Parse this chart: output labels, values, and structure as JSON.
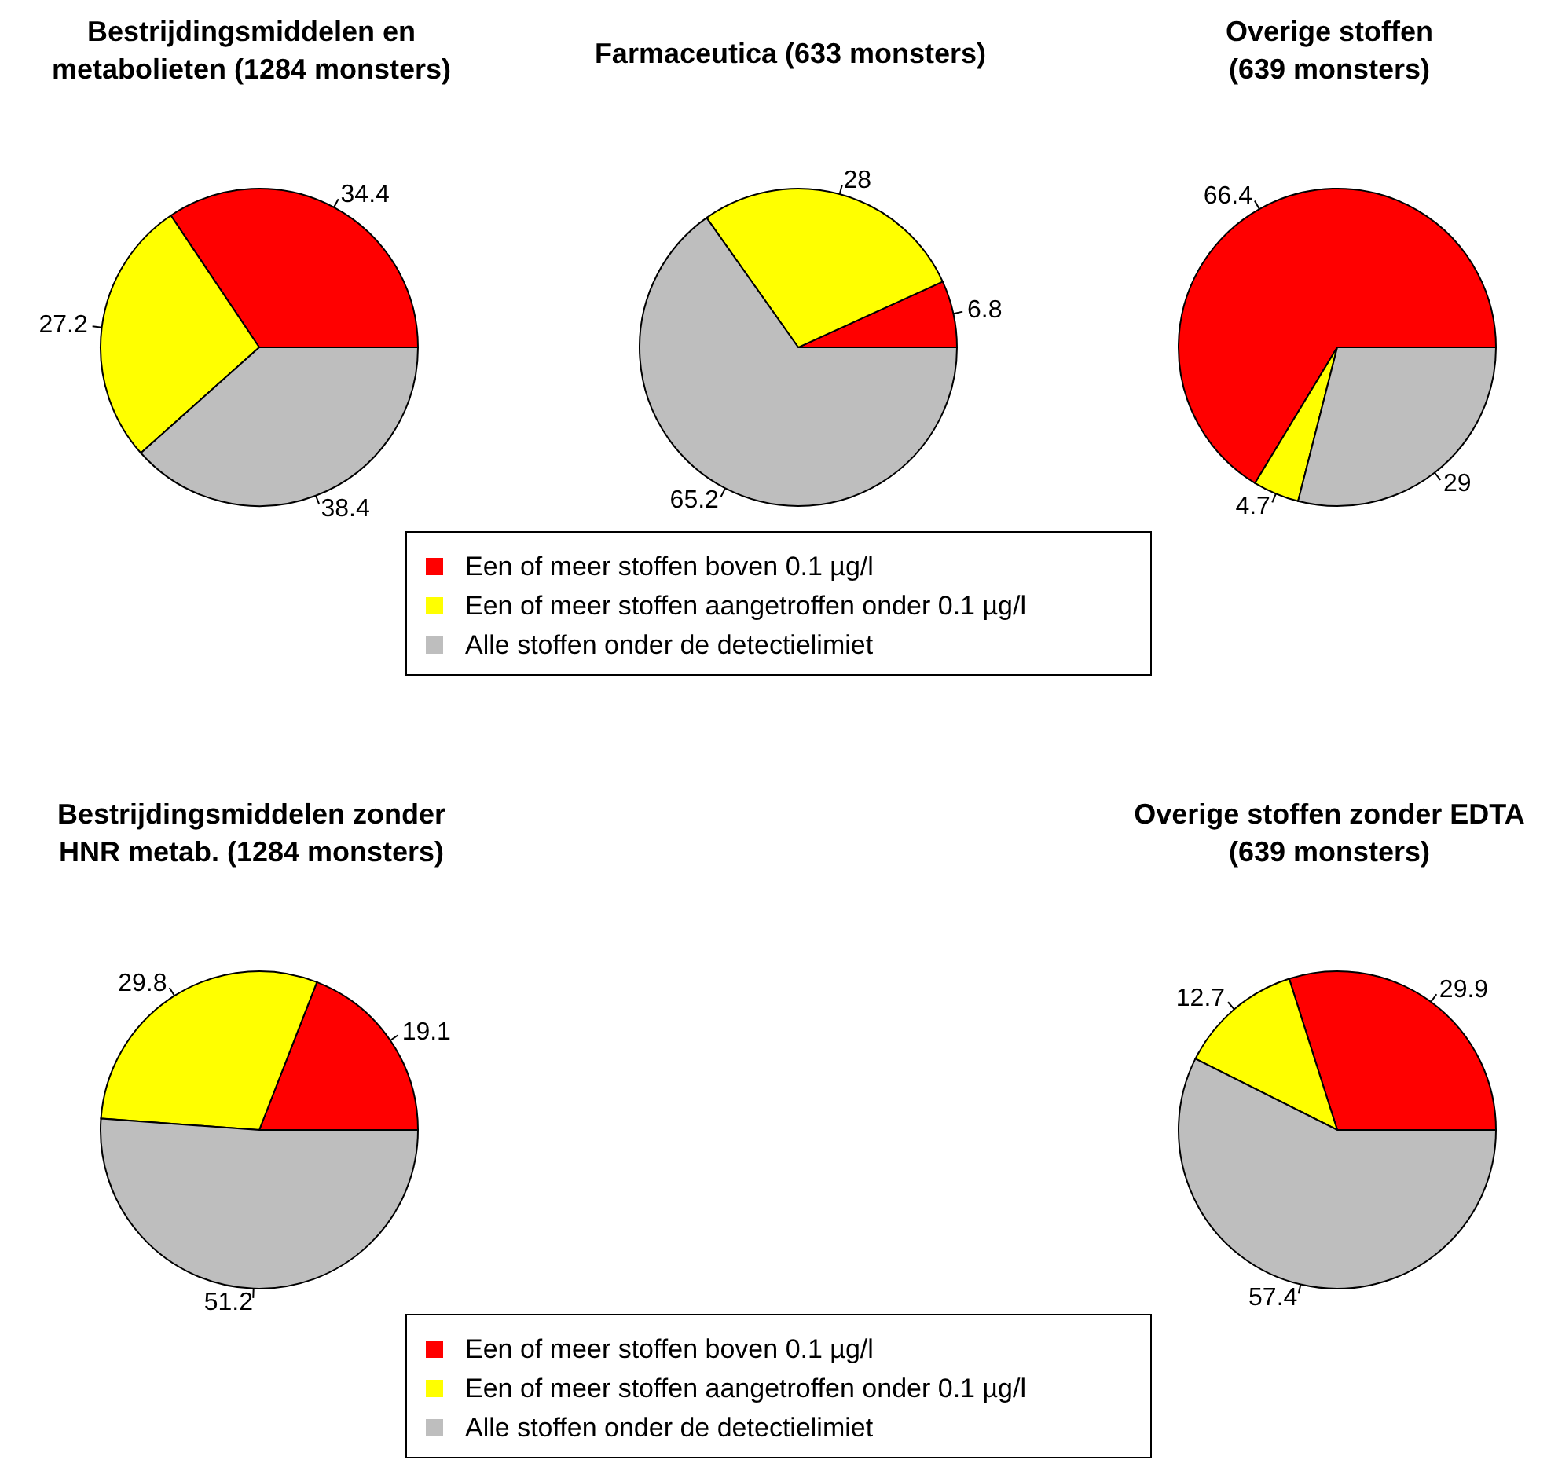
{
  "chart_data": [
    {
      "type": "pie",
      "title": "Bestrijdingsmiddelen en\nmetabolieten (1284 monsters)",
      "categories": [
        null,
        null,
        null
      ],
      "values": [
        34.4,
        27.2,
        38.4
      ],
      "colors": [
        "#ff0000",
        "#ffff00",
        "#bebebe"
      ],
      "data_labels": true
    },
    {
      "type": "pie",
      "title": "Farmaceutica (633 monsters)",
      "categories": [
        "Een of meer stoffen boven 0.1 µg/l",
        "Een of meer stoffen aangetroffen onder 0.1 µg/l",
        "Alle stoffen onder de detectielimiet"
      ],
      "values": [
        6.8,
        28,
        65.2
      ],
      "colors": [
        "#ff0000",
        "#ffff00",
        "#bebebe"
      ],
      "data_labels": true,
      "legend": "bottom"
    },
    {
      "type": "pie",
      "title": "Overige stoffen\n(639 monsters)",
      "categories": [
        null,
        null,
        null
      ],
      "values": [
        66.4,
        4.7,
        29
      ],
      "colors": [
        "#ff0000",
        "#ffff00",
        "#bebebe"
      ],
      "data_labels": true
    },
    {
      "type": "pie",
      "title": "Bestrijdingsmiddelen zonder\nHNR metab. (1284 monsters)",
      "categories": [
        "Een of meer stoffen boven 0.1 µg/l",
        "Een of meer stoffen aangetroffen onder 0.1 µg/l",
        "Alle stoffen onder de detectielimiet"
      ],
      "values": [
        19.1,
        29.8,
        51.2
      ],
      "colors": [
        "#ff0000",
        "#ffff00",
        "#bebebe"
      ],
      "data_labels": true,
      "legend": "bottom"
    },
    {
      "type": "pie",
      "title": "Overige stoffen zonder EDTA\n(639 monsters)",
      "categories": [
        null,
        null,
        null
      ],
      "values": [
        29.9,
        12.7,
        57.4
      ],
      "colors": [
        "#ff0000",
        "#ffff00",
        "#bebebe"
      ],
      "data_labels": true
    }
  ]
}
